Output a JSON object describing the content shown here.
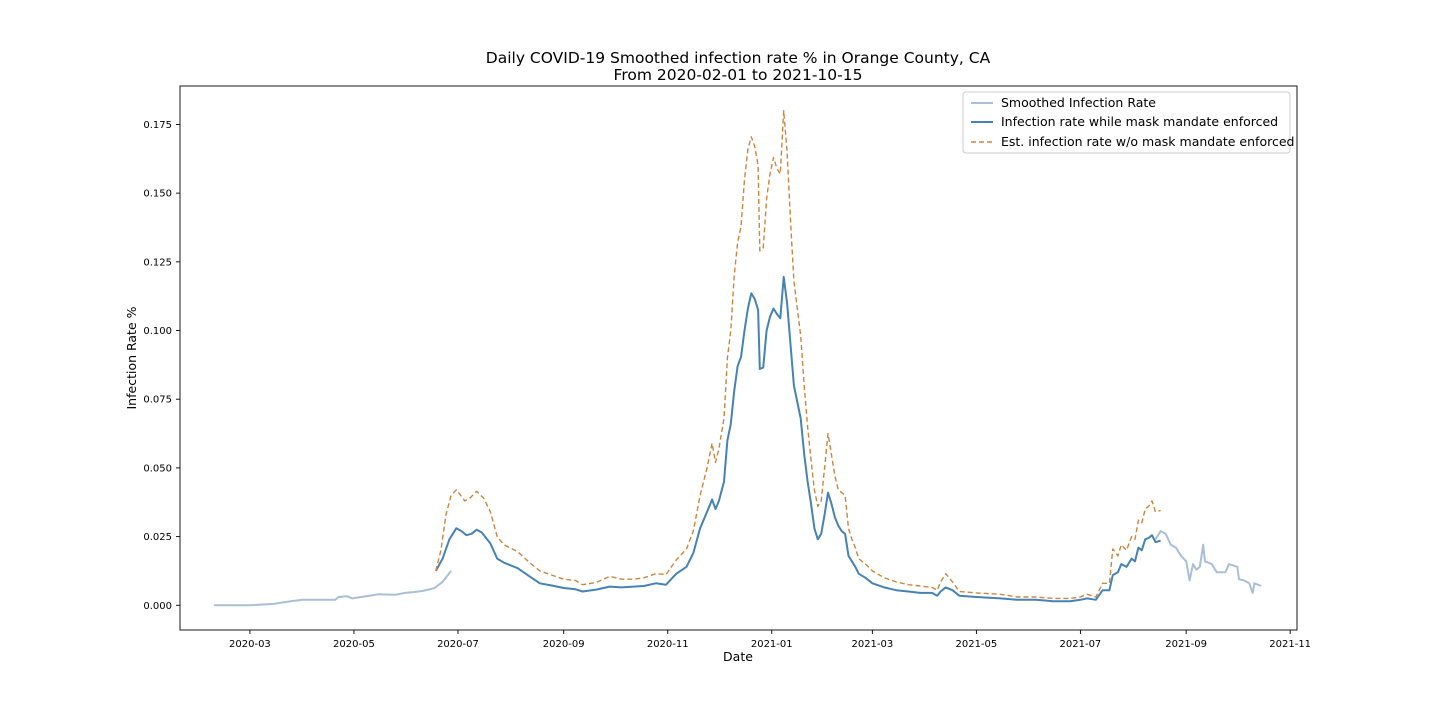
{
  "chart_data": {
    "type": "line",
    "title": "Daily COVID-19 Smoothed infection rate % in Orange County, CA",
    "subtitle": "From 2020-02-01 to 2021-10-15",
    "xlabel": "Date",
    "ylabel": "Infection Rate %",
    "xlim": [
      "2020-01-20",
      "2021-11-05"
    ],
    "ylim": [
      -0.009,
      0.189
    ],
    "x_ticks": [
      "2020-03",
      "2020-05",
      "2020-07",
      "2020-09",
      "2020-11",
      "2021-01",
      "2021-03",
      "2021-05",
      "2021-07",
      "2021-09",
      "2021-11"
    ],
    "y_ticks": [
      "0.000",
      "0.025",
      "0.050",
      "0.075",
      "0.100",
      "0.125",
      "0.150",
      "0.175"
    ],
    "legend_position": "top-right",
    "grid": false,
    "series": [
      {
        "name": "Smoothed Infection Rate",
        "color": "#a9bfd8",
        "style": "solid",
        "points": [
          [
            "2020-02-09",
            0.0
          ],
          [
            "2020-03-01",
            0.0
          ],
          [
            "2020-03-15",
            0.0005
          ],
          [
            "2020-03-25",
            0.0015
          ],
          [
            "2020-04-01",
            0.002
          ],
          [
            "2020-04-15",
            0.002
          ],
          [
            "2020-04-20",
            0.002
          ],
          [
            "2020-04-22",
            0.003
          ],
          [
            "2020-04-27",
            0.0033
          ],
          [
            "2020-04-30",
            0.0025
          ],
          [
            "2020-05-10",
            0.0035
          ],
          [
            "2020-05-15",
            0.004
          ],
          [
            "2020-05-25",
            0.0038
          ],
          [
            "2020-05-31",
            0.0045
          ],
          [
            "2020-06-05",
            0.0048
          ],
          [
            "2020-06-10",
            0.0052
          ],
          [
            "2020-06-17",
            0.0062
          ],
          [
            "2020-06-22",
            0.0085
          ],
          [
            "2020-06-27",
            0.0125
          ],
          [
            "2021-08-14",
            0.024
          ],
          [
            "2021-08-17",
            0.027
          ],
          [
            "2021-08-20",
            0.026
          ],
          [
            "2021-08-23",
            0.022
          ],
          [
            "2021-08-26",
            0.021
          ],
          [
            "2021-08-29",
            0.018
          ],
          [
            "2021-09-01",
            0.016
          ],
          [
            "2021-09-03",
            0.009
          ],
          [
            "2021-09-05",
            0.015
          ],
          [
            "2021-09-07",
            0.013
          ],
          [
            "2021-09-09",
            0.014
          ],
          [
            "2021-09-11",
            0.022
          ],
          [
            "2021-09-12",
            0.016
          ],
          [
            "2021-09-16",
            0.015
          ],
          [
            "2021-09-19",
            0.012
          ],
          [
            "2021-09-24",
            0.012
          ],
          [
            "2021-09-26",
            0.015
          ],
          [
            "2021-10-01",
            0.014
          ],
          [
            "2021-10-02",
            0.0095
          ],
          [
            "2021-10-05",
            0.009
          ],
          [
            "2021-10-08",
            0.008
          ],
          [
            "2021-10-10",
            0.0045
          ],
          [
            "2021-10-11",
            0.008
          ],
          [
            "2021-10-15",
            0.007
          ]
        ]
      },
      {
        "name": "Infection rate while mask mandate enforced",
        "color": "#4682b4",
        "style": "solid",
        "points": [
          [
            "2020-06-18",
            0.0125
          ],
          [
            "2020-06-22",
            0.017
          ],
          [
            "2020-06-26",
            0.024
          ],
          [
            "2020-06-30",
            0.028
          ],
          [
            "2020-07-03",
            0.027
          ],
          [
            "2020-07-06",
            0.0255
          ],
          [
            "2020-07-09",
            0.026
          ],
          [
            "2020-07-12",
            0.0275
          ],
          [
            "2020-07-15",
            0.0265
          ],
          [
            "2020-07-20",
            0.0225
          ],
          [
            "2020-07-24",
            0.017
          ],
          [
            "2020-07-28",
            0.0155
          ],
          [
            "2020-08-05",
            0.0135
          ],
          [
            "2020-08-12",
            0.0105
          ],
          [
            "2020-08-18",
            0.008
          ],
          [
            "2020-08-25",
            0.0072
          ],
          [
            "2020-09-01",
            0.0063
          ],
          [
            "2020-09-08",
            0.0058
          ],
          [
            "2020-09-12",
            0.005
          ],
          [
            "2020-09-20",
            0.0057
          ],
          [
            "2020-09-28",
            0.0068
          ],
          [
            "2020-10-05",
            0.0065
          ],
          [
            "2020-10-12",
            0.0068
          ],
          [
            "2020-10-18",
            0.007
          ],
          [
            "2020-10-25",
            0.008
          ],
          [
            "2020-10-31",
            0.0075
          ],
          [
            "2020-11-06",
            0.0115
          ],
          [
            "2020-11-12",
            0.014
          ],
          [
            "2020-11-16",
            0.019
          ],
          [
            "2020-11-20",
            0.028
          ],
          [
            "2020-11-24",
            0.034
          ],
          [
            "2020-11-27",
            0.0385
          ],
          [
            "2020-11-29",
            0.035
          ],
          [
            "2020-12-01",
            0.038
          ],
          [
            "2020-12-04",
            0.045
          ],
          [
            "2020-12-06",
            0.06
          ],
          [
            "2020-12-08",
            0.066
          ],
          [
            "2020-12-10",
            0.078
          ],
          [
            "2020-12-12",
            0.087
          ],
          [
            "2020-12-14",
            0.0905
          ],
          [
            "2020-12-16",
            0.1
          ],
          [
            "2020-12-18",
            0.108
          ],
          [
            "2020-12-20",
            0.1135
          ],
          [
            "2020-12-22",
            0.1115
          ],
          [
            "2020-12-24",
            0.1075
          ],
          [
            "2020-12-25",
            0.086
          ],
          [
            "2020-12-27",
            0.0865
          ],
          [
            "2020-12-29",
            0.1
          ],
          [
            "2020-12-31",
            0.105
          ],
          [
            "2021-01-02",
            0.108
          ],
          [
            "2021-01-04",
            0.106
          ],
          [
            "2021-01-06",
            0.1045
          ],
          [
            "2021-01-08",
            0.1195
          ],
          [
            "2021-01-10",
            0.11
          ],
          [
            "2021-01-12",
            0.095
          ],
          [
            "2021-01-14",
            0.08
          ],
          [
            "2021-01-16",
            0.074
          ],
          [
            "2021-01-18",
            0.068
          ],
          [
            "2021-01-20",
            0.055
          ],
          [
            "2021-01-22",
            0.045
          ],
          [
            "2021-01-24",
            0.037
          ],
          [
            "2021-01-26",
            0.028
          ],
          [
            "2021-01-28",
            0.024
          ],
          [
            "2021-01-30",
            0.026
          ],
          [
            "2021-02-01",
            0.033
          ],
          [
            "2021-02-03",
            0.041
          ],
          [
            "2021-02-05",
            0.037
          ],
          [
            "2021-02-07",
            0.032
          ],
          [
            "2021-02-09",
            0.029
          ],
          [
            "2021-02-11",
            0.027
          ],
          [
            "2021-02-13",
            0.026
          ],
          [
            "2021-02-15",
            0.018
          ],
          [
            "2021-02-17",
            0.016
          ],
          [
            "2021-02-19",
            0.014
          ],
          [
            "2021-02-21",
            0.0115
          ],
          [
            "2021-02-25",
            0.01
          ],
          [
            "2021-03-01",
            0.008
          ],
          [
            "2021-03-08",
            0.0065
          ],
          [
            "2021-03-15",
            0.0055
          ],
          [
            "2021-03-22",
            0.005
          ],
          [
            "2021-03-29",
            0.0045
          ],
          [
            "2021-04-05",
            0.0045
          ],
          [
            "2021-04-08",
            0.0035
          ],
          [
            "2021-04-10",
            0.005
          ],
          [
            "2021-04-13",
            0.0065
          ],
          [
            "2021-04-17",
            0.0055
          ],
          [
            "2021-04-21",
            0.0035
          ],
          [
            "2021-05-01",
            0.003
          ],
          [
            "2021-05-15",
            0.0025
          ],
          [
            "2021-05-25",
            0.002
          ],
          [
            "2021-06-05",
            0.002
          ],
          [
            "2021-06-15",
            0.0015
          ],
          [
            "2021-06-25",
            0.0015
          ],
          [
            "2021-07-01",
            0.002
          ],
          [
            "2021-07-05",
            0.0025
          ],
          [
            "2021-07-10",
            0.002
          ],
          [
            "2021-07-14",
            0.0055
          ],
          [
            "2021-07-18",
            0.0055
          ],
          [
            "2021-07-20",
            0.011
          ],
          [
            "2021-07-23",
            0.012
          ],
          [
            "2021-07-25",
            0.015
          ],
          [
            "2021-07-28",
            0.014
          ],
          [
            "2021-07-31",
            0.017
          ],
          [
            "2021-08-02",
            0.016
          ],
          [
            "2021-08-04",
            0.021
          ],
          [
            "2021-08-06",
            0.02
          ],
          [
            "2021-08-08",
            0.024
          ],
          [
            "2021-08-10",
            0.0245
          ],
          [
            "2021-08-12",
            0.0255
          ],
          [
            "2021-08-14",
            0.023
          ],
          [
            "2021-08-17",
            0.0235
          ]
        ]
      },
      {
        "name": "Est. infection rate w/o mask mandate enforced",
        "color": "#cd853f",
        "style": "dashed",
        "points": [
          [
            "2020-06-18",
            0.0125
          ],
          [
            "2020-06-21",
            0.02
          ],
          [
            "2020-06-24",
            0.033
          ],
          [
            "2020-06-27",
            0.04
          ],
          [
            "2020-06-30",
            0.042
          ],
          [
            "2020-07-02",
            0.0405
          ],
          [
            "2020-07-05",
            0.038
          ],
          [
            "2020-07-08",
            0.039
          ],
          [
            "2020-07-12",
            0.0415
          ],
          [
            "2020-07-16",
            0.039
          ],
          [
            "2020-07-20",
            0.034
          ],
          [
            "2020-07-24",
            0.025
          ],
          [
            "2020-07-28",
            0.022
          ],
          [
            "2020-08-05",
            0.0195
          ],
          [
            "2020-08-12",
            0.0155
          ],
          [
            "2020-08-18",
            0.0125
          ],
          [
            "2020-08-25",
            0.011
          ],
          [
            "2020-09-01",
            0.0095
          ],
          [
            "2020-09-08",
            0.009
          ],
          [
            "2020-09-12",
            0.0075
          ],
          [
            "2020-09-20",
            0.0083
          ],
          [
            "2020-09-28",
            0.0105
          ],
          [
            "2020-10-05",
            0.0095
          ],
          [
            "2020-10-12",
            0.0095
          ],
          [
            "2020-10-18",
            0.01
          ],
          [
            "2020-10-25",
            0.0115
          ],
          [
            "2020-10-31",
            0.0112
          ],
          [
            "2020-11-06",
            0.0165
          ],
          [
            "2020-11-12",
            0.0205
          ],
          [
            "2020-11-16",
            0.027
          ],
          [
            "2020-11-20",
            0.04
          ],
          [
            "2020-11-24",
            0.05
          ],
          [
            "2020-11-27",
            0.059
          ],
          [
            "2020-11-29",
            0.052
          ],
          [
            "2020-12-01",
            0.057
          ],
          [
            "2020-12-04",
            0.068
          ],
          [
            "2020-12-06",
            0.09
          ],
          [
            "2020-12-08",
            0.1
          ],
          [
            "2020-12-10",
            0.12
          ],
          [
            "2020-12-12",
            0.132
          ],
          [
            "2020-12-14",
            0.138
          ],
          [
            "2020-12-16",
            0.155
          ],
          [
            "2020-12-18",
            0.166
          ],
          [
            "2020-12-20",
            0.1705
          ],
          [
            "2020-12-22",
            0.167
          ],
          [
            "2020-12-24",
            0.16
          ],
          [
            "2020-12-25",
            0.129
          ],
          [
            "2020-12-27",
            0.13
          ],
          [
            "2020-12-29",
            0.148
          ],
          [
            "2020-12-31",
            0.157
          ],
          [
            "2021-01-02",
            0.163
          ],
          [
            "2021-01-04",
            0.159
          ],
          [
            "2021-01-06",
            0.157
          ],
          [
            "2021-01-08",
            0.18
          ],
          [
            "2021-01-10",
            0.165
          ],
          [
            "2021-01-12",
            0.14
          ],
          [
            "2021-01-14",
            0.118
          ],
          [
            "2021-01-16",
            0.108
          ],
          [
            "2021-01-18",
            0.098
          ],
          [
            "2021-01-20",
            0.08
          ],
          [
            "2021-01-22",
            0.065
          ],
          [
            "2021-01-24",
            0.053
          ],
          [
            "2021-01-26",
            0.042
          ],
          [
            "2021-01-28",
            0.036
          ],
          [
            "2021-01-30",
            0.038
          ],
          [
            "2021-02-01",
            0.05
          ],
          [
            "2021-02-03",
            0.0625
          ],
          [
            "2021-02-05",
            0.055
          ],
          [
            "2021-02-07",
            0.047
          ],
          [
            "2021-02-09",
            0.042
          ],
          [
            "2021-02-11",
            0.041
          ],
          [
            "2021-02-13",
            0.04
          ],
          [
            "2021-02-15",
            0.028
          ],
          [
            "2021-02-17",
            0.024
          ],
          [
            "2021-02-19",
            0.021
          ],
          [
            "2021-02-21",
            0.017
          ],
          [
            "2021-02-25",
            0.015
          ],
          [
            "2021-03-01",
            0.0125
          ],
          [
            "2021-03-08",
            0.01
          ],
          [
            "2021-03-15",
            0.0085
          ],
          [
            "2021-03-22",
            0.0075
          ],
          [
            "2021-03-29",
            0.007
          ],
          [
            "2021-04-05",
            0.0065
          ],
          [
            "2021-04-08",
            0.0055
          ],
          [
            "2021-04-10",
            0.0085
          ],
          [
            "2021-04-13",
            0.0115
          ],
          [
            "2021-04-17",
            0.0085
          ],
          [
            "2021-04-21",
            0.005
          ],
          [
            "2021-05-01",
            0.0045
          ],
          [
            "2021-05-15",
            0.004
          ],
          [
            "2021-05-25",
            0.003
          ],
          [
            "2021-06-05",
            0.003
          ],
          [
            "2021-06-15",
            0.0025
          ],
          [
            "2021-06-25",
            0.0025
          ],
          [
            "2021-07-01",
            0.003
          ],
          [
            "2021-07-05",
            0.004
          ],
          [
            "2021-07-10",
            0.003
          ],
          [
            "2021-07-14",
            0.008
          ],
          [
            "2021-07-18",
            0.008
          ],
          [
            "2021-07-20",
            0.0205
          ],
          [
            "2021-07-23",
            0.018
          ],
          [
            "2021-07-25",
            0.022
          ],
          [
            "2021-07-28",
            0.02
          ],
          [
            "2021-07-31",
            0.025
          ],
          [
            "2021-08-02",
            0.024
          ],
          [
            "2021-08-04",
            0.031
          ],
          [
            "2021-08-06",
            0.03
          ],
          [
            "2021-08-08",
            0.035
          ],
          [
            "2021-08-10",
            0.036
          ],
          [
            "2021-08-12",
            0.038
          ],
          [
            "2021-08-14",
            0.034
          ],
          [
            "2021-08-17",
            0.0345
          ]
        ]
      }
    ]
  }
}
